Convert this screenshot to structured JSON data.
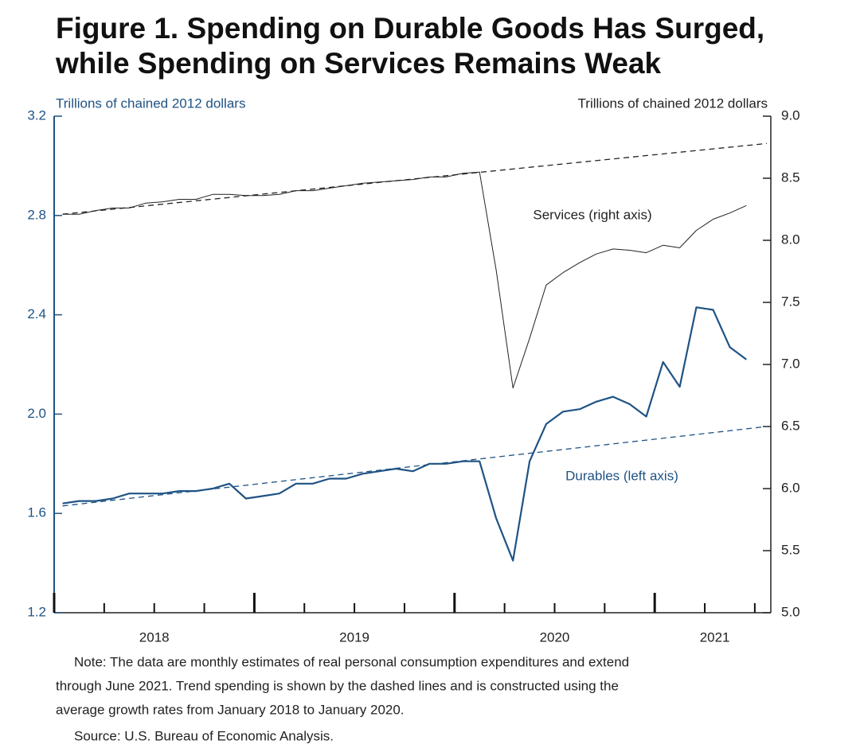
{
  "chart_data": {
    "type": "line",
    "title": [
      "Figure 1. Spending on Durable Goods Has Surged,",
      "while Spending on Services Remains Weak"
    ],
    "ylabel": "Trillions of chained 2012 dollars",
    "y2label": "Trillions of chained 2012 dollars",
    "x": [
      2018.042,
      2018.125,
      2018.208,
      2018.292,
      2018.375,
      2018.458,
      2018.542,
      2018.625,
      2018.708,
      2018.792,
      2018.875,
      2018.958,
      2019.042,
      2019.125,
      2019.208,
      2019.292,
      2019.375,
      2019.458,
      2019.542,
      2019.625,
      2019.708,
      2019.792,
      2019.875,
      2019.958,
      2020.042,
      2020.125,
      2020.208,
      2020.292,
      2020.375,
      2020.458,
      2020.542,
      2020.625,
      2020.708,
      2020.792,
      2020.875,
      2020.958,
      2021.042,
      2021.125,
      2021.208,
      2021.292,
      2021.375,
      2021.458
    ],
    "xlim": [
      2018,
      2021.58
    ],
    "xticks": [
      2018,
      2019,
      2020,
      2021
    ],
    "xminorticks": [
      2018.25,
      2018.5,
      2018.75,
      2019.25,
      2019.5,
      2019.75,
      2020.25,
      2020.5,
      2020.75,
      2021.25,
      2021.5
    ],
    "xlabels": [
      {
        "value": 2018.5,
        "label": "2018"
      },
      {
        "value": 2019.5,
        "label": "2019"
      },
      {
        "value": 2020.5,
        "label": "2020"
      },
      {
        "value": 2021.3,
        "label": "2021"
      }
    ],
    "ylim": [
      1.2,
      3.2
    ],
    "yticks": [
      1.2,
      1.6,
      2.0,
      2.4,
      2.8,
      3.2
    ],
    "y2lim": [
      5.0,
      9.0
    ],
    "y2ticks": [
      5.0,
      5.5,
      6.0,
      6.5,
      7.0,
      7.5,
      8.0,
      8.5,
      9.0
    ],
    "series": [
      {
        "name": "Services (right axis)",
        "axis": "y2",
        "color": "#222222",
        "values": [
          8.21,
          8.21,
          8.24,
          8.26,
          8.26,
          8.3,
          8.31,
          8.33,
          8.33,
          8.37,
          8.37,
          8.36,
          8.36,
          8.37,
          8.4,
          8.4,
          8.42,
          8.44,
          8.46,
          8.47,
          8.48,
          8.49,
          8.51,
          8.51,
          8.54,
          8.55,
          7.76,
          6.81,
          7.21,
          7.64,
          7.74,
          7.82,
          7.89,
          7.93,
          7.92,
          7.9,
          7.96,
          7.94,
          8.08,
          8.17,
          8.22,
          8.28
        ]
      },
      {
        "name": "Durables (left axis)",
        "color": "#1f5384",
        "values": [
          1.64,
          1.65,
          1.65,
          1.66,
          1.68,
          1.68,
          1.68,
          1.69,
          1.69,
          1.7,
          1.72,
          1.66,
          1.67,
          1.68,
          1.72,
          1.72,
          1.74,
          1.74,
          1.76,
          1.77,
          1.78,
          1.77,
          1.8,
          1.8,
          1.81,
          1.81,
          1.58,
          1.41,
          1.81,
          1.96,
          2.01,
          2.02,
          2.05,
          2.07,
          2.04,
          1.99,
          2.21,
          2.11,
          2.43,
          2.42,
          2.27,
          2.22
        ]
      }
    ],
    "trends": [
      {
        "axis": "y2",
        "color": "#222222",
        "style": "dashed",
        "x": [
          2018.042,
          2021.56
        ],
        "values": [
          8.21,
          8.78
        ]
      },
      {
        "color": "#1f5384",
        "style": "dashed",
        "x": [
          2018.042,
          2021.56
        ],
        "values": [
          1.63,
          1.95
        ]
      }
    ],
    "note": [
      "Note:  The data are monthly estimates of real personal consumption expenditures and extend",
      "through June 2021. Trend spending is shown by the dashed lines and is constructed using the",
      "average growth rates from January 2018 to January 2020."
    ],
    "source": "Source:  U.S. Bureau of Economic Analysis."
  }
}
